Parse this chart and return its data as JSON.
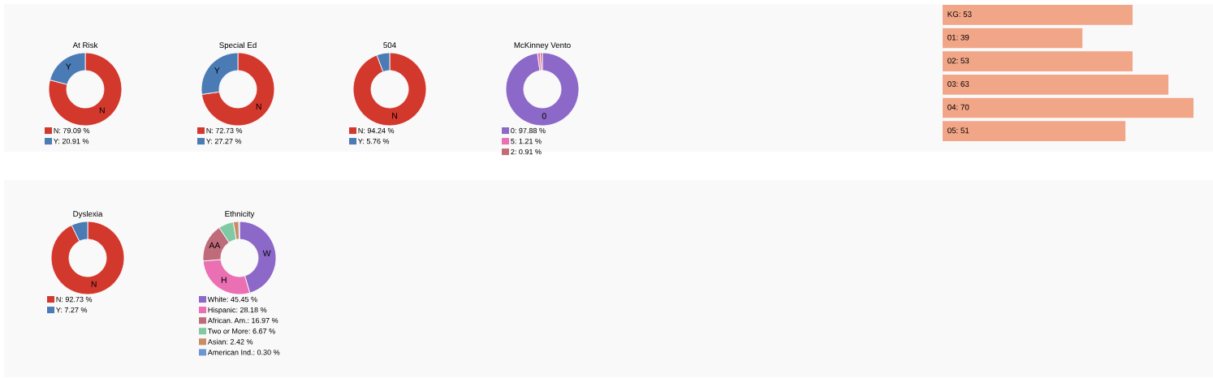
{
  "chart_data": [
    {
      "type": "donut",
      "title": "At Risk",
      "categories": [
        "N: 79.09 %",
        "Y: 20.91 %"
      ],
      "values": [
        79.09,
        20.91
      ],
      "colors": [
        "#d3382d",
        "#4a7bb5"
      ],
      "annotations": [
        {
          "text": "N",
          "x": "N: 79.09 %"
        },
        {
          "text": "Y",
          "x": "Y: 20.91 %"
        }
      ],
      "legend": "bottom"
    },
    {
      "type": "donut",
      "title": "Special Ed",
      "categories": [
        "N: 72.73 %",
        "Y: 27.27 %"
      ],
      "values": [
        72.73,
        27.27
      ],
      "colors": [
        "#d3382d",
        "#4a7bb5"
      ],
      "annotations": [
        {
          "text": "N",
          "x": "N: 72.73 %"
        },
        {
          "text": "Y",
          "x": "Y: 27.27 %"
        }
      ],
      "legend": "bottom"
    },
    {
      "type": "donut",
      "title": "504",
      "categories": [
        "N: 94.24 %",
        "Y: 5.76 %"
      ],
      "values": [
        94.24,
        5.76
      ],
      "colors": [
        "#d3382d",
        "#4a7bb5"
      ],
      "annotations": [
        {
          "text": "N",
          "x": "N: 94.24 %"
        }
      ],
      "legend": "bottom"
    },
    {
      "type": "donut",
      "title": "McKinney Vento",
      "categories": [
        "0: 97.88 %",
        "5: 1.21 %",
        "2: 0.91 %"
      ],
      "values": [
        97.88,
        1.21,
        0.91
      ],
      "colors": [
        "#8c68c8",
        "#ea6fb3",
        "#c06b7a"
      ],
      "annotations": [
        {
          "text": "0",
          "x": "0: 97.88 %"
        }
      ],
      "legend": "bottom"
    },
    {
      "type": "bar",
      "orientation": "horizontal",
      "categories": [
        null,
        null,
        null,
        null,
        null,
        null
      ],
      "values": [
        53,
        39,
        53,
        63,
        70,
        51
      ],
      "color": "#f2a688",
      "value_labels": [
        "KG: 53",
        "01: 39",
        "02: 53",
        "03: 63",
        "04: 70",
        "05: 51"
      ],
      "xlim": [
        0,
        70
      ],
      "tick_labels": false
    },
    {
      "type": "donut",
      "title": "Dyslexia",
      "categories": [
        "N: 92.73 %",
        "Y: 7.27 %"
      ],
      "values": [
        92.73,
        7.27
      ],
      "colors": [
        "#d3382d",
        "#4a7bb5"
      ],
      "annotations": [
        {
          "text": "N",
          "x": "N: 92.73 %"
        }
      ],
      "legend": "bottom"
    },
    {
      "type": "donut",
      "title": "Ethnicity",
      "categories": [
        "White: 45.45 %",
        "Hispanic: 28.18 %",
        "African. Am.: 16.97 %",
        "Two or More: 6.67 %",
        "Asian: 2.42 %",
        "American Ind.: 0.30 %"
      ],
      "values": [
        45.45,
        28.18,
        16.97,
        6.67,
        2.42,
        0.3
      ],
      "colors": [
        "#8c68c8",
        "#ea6fb3",
        "#c06b7a",
        "#7fcaa5",
        "#c98c66",
        "#6c96d1"
      ],
      "annotations": [
        {
          "text": "W",
          "x": "White: 45.45 %"
        },
        {
          "text": "H",
          "x": "Hispanic: 28.18 %"
        },
        {
          "text": "AA",
          "x": "African. Am.: 16.97 %"
        }
      ],
      "legend": "bottom"
    }
  ]
}
